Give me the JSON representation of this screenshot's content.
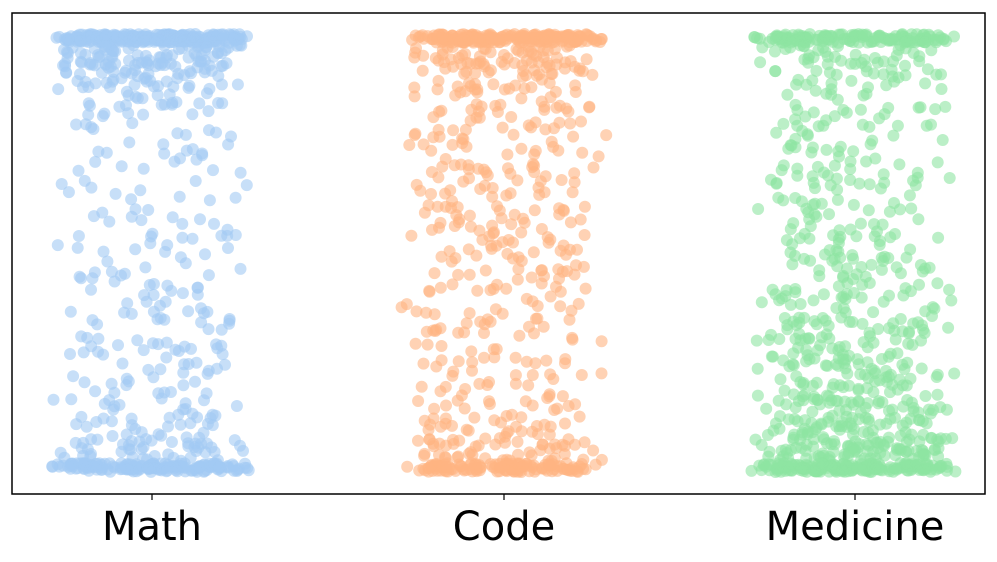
{
  "chart_data": {
    "type": "scatter",
    "title": "",
    "xlabel": "",
    "ylabel": "",
    "categories": [
      "Math",
      "Code",
      "Medicine"
    ],
    "ylim": [
      0,
      1
    ],
    "grid": false,
    "legend": "none",
    "jitter_half_width": 0.45,
    "series": [
      {
        "category": "Math",
        "color": "#a1c9f4",
        "points": [
          {
            "y": 0.99,
            "count": 260
          },
          {
            "y": 0.95,
            "count": 90
          },
          {
            "y": 0.9,
            "count": 45
          },
          {
            "y": 0.85,
            "count": 22
          },
          {
            "y": 0.8,
            "count": 14
          },
          {
            "y": 0.75,
            "count": 12
          },
          {
            "y": 0.7,
            "count": 10
          },
          {
            "y": 0.65,
            "count": 10
          },
          {
            "y": 0.6,
            "count": 10
          },
          {
            "y": 0.55,
            "count": 12
          },
          {
            "y": 0.5,
            "count": 12
          },
          {
            "y": 0.45,
            "count": 14
          },
          {
            "y": 0.4,
            "count": 12
          },
          {
            "y": 0.35,
            "count": 18
          },
          {
            "y": 0.3,
            "count": 18
          },
          {
            "y": 0.25,
            "count": 16
          },
          {
            "y": 0.2,
            "count": 16
          },
          {
            "y": 0.15,
            "count": 18
          },
          {
            "y": 0.1,
            "count": 25
          },
          {
            "y": 0.05,
            "count": 45
          },
          {
            "y": 0.01,
            "count": 160
          }
        ]
      },
      {
        "category": "Code",
        "color": "#ffb482",
        "points": [
          {
            "y": 0.99,
            "count": 200
          },
          {
            "y": 0.95,
            "count": 60
          },
          {
            "y": 0.9,
            "count": 35
          },
          {
            "y": 0.85,
            "count": 26
          },
          {
            "y": 0.8,
            "count": 22
          },
          {
            "y": 0.75,
            "count": 22
          },
          {
            "y": 0.7,
            "count": 22
          },
          {
            "y": 0.65,
            "count": 22
          },
          {
            "y": 0.6,
            "count": 22
          },
          {
            "y": 0.55,
            "count": 22
          },
          {
            "y": 0.5,
            "count": 22
          },
          {
            "y": 0.45,
            "count": 20
          },
          {
            "y": 0.4,
            "count": 18
          },
          {
            "y": 0.35,
            "count": 18
          },
          {
            "y": 0.3,
            "count": 18
          },
          {
            "y": 0.25,
            "count": 16
          },
          {
            "y": 0.2,
            "count": 16
          },
          {
            "y": 0.15,
            "count": 20
          },
          {
            "y": 0.1,
            "count": 28
          },
          {
            "y": 0.05,
            "count": 50
          },
          {
            "y": 0.01,
            "count": 130
          }
        ]
      },
      {
        "category": "Medicine",
        "color": "#8de5a1",
        "points": [
          {
            "y": 0.99,
            "count": 140
          },
          {
            "y": 0.95,
            "count": 40
          },
          {
            "y": 0.9,
            "count": 25
          },
          {
            "y": 0.85,
            "count": 18
          },
          {
            "y": 0.8,
            "count": 18
          },
          {
            "y": 0.75,
            "count": 18
          },
          {
            "y": 0.7,
            "count": 18
          },
          {
            "y": 0.65,
            "count": 20
          },
          {
            "y": 0.6,
            "count": 20
          },
          {
            "y": 0.55,
            "count": 22
          },
          {
            "y": 0.5,
            "count": 22
          },
          {
            "y": 0.45,
            "count": 24
          },
          {
            "y": 0.4,
            "count": 28
          },
          {
            "y": 0.35,
            "count": 32
          },
          {
            "y": 0.3,
            "count": 36
          },
          {
            "y": 0.25,
            "count": 38
          },
          {
            "y": 0.2,
            "count": 40
          },
          {
            "y": 0.15,
            "count": 50
          },
          {
            "y": 0.1,
            "count": 65
          },
          {
            "y": 0.05,
            "count": 90
          },
          {
            "y": 0.01,
            "count": 170
          }
        ]
      }
    ]
  }
}
